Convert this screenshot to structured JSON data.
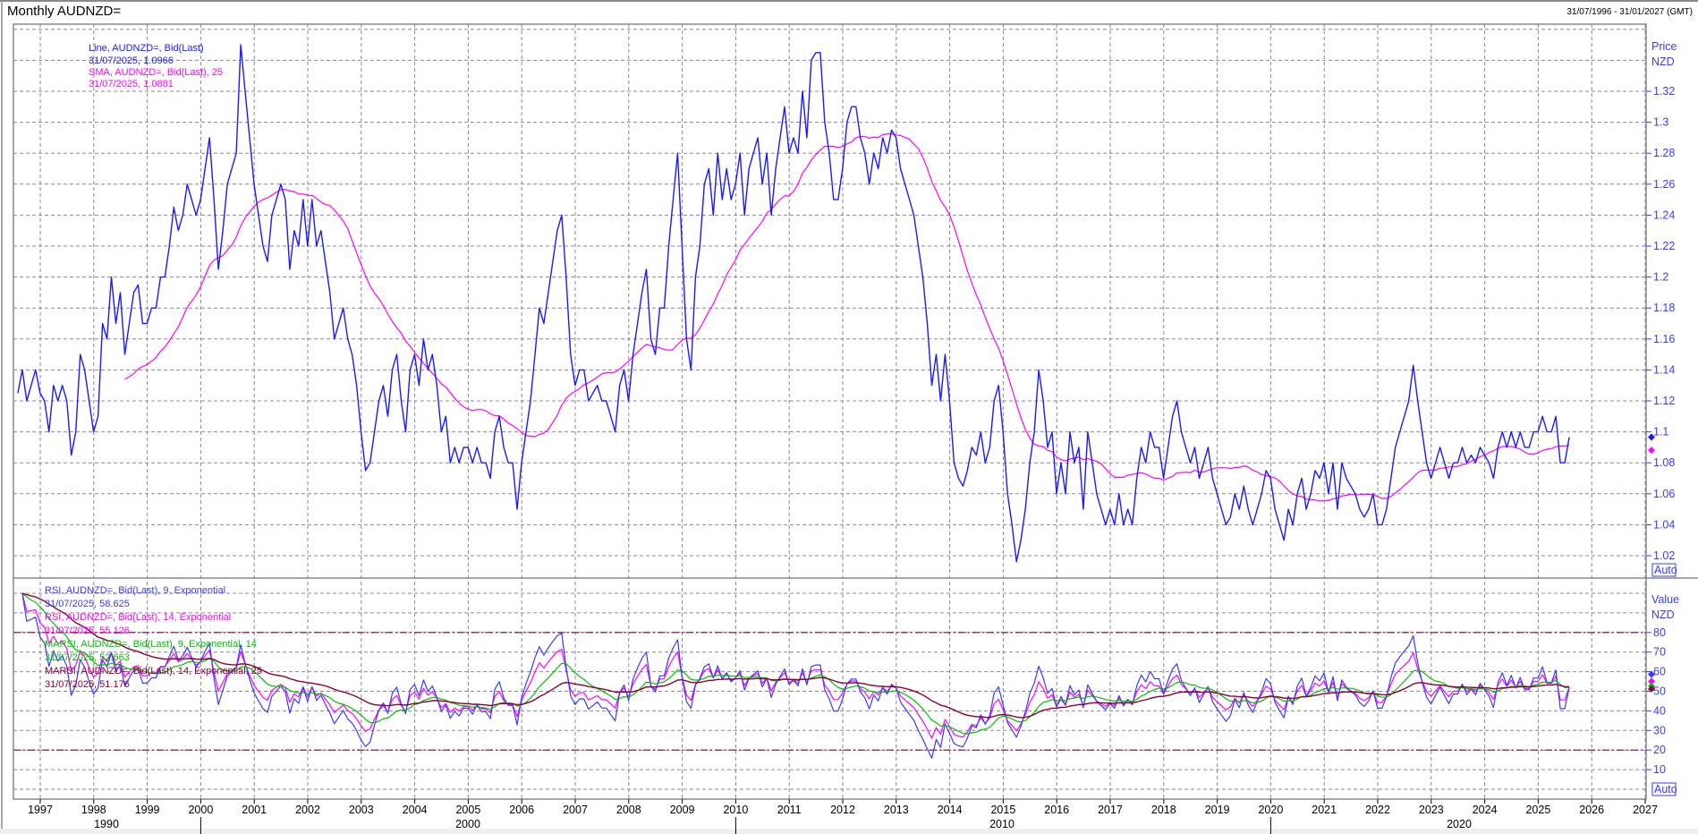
{
  "header": {
    "title": "Monthly AUDNZD=",
    "date_range": "31/07/1996 - 31/01/2027 (GMT)"
  },
  "price_panel": {
    "axis_title": "Price",
    "axis_unit": "NZD",
    "auto_label": "Auto",
    "legend": [
      {
        "label": "Line, AUDNZD=, Bid(Last)",
        "value": "31/07/2025, 1.0966",
        "color": "#1a1aff"
      },
      {
        "label": "SMA, AUDNZD=, Bid(Last),  25",
        "value": "31/07/2025, 1.0881",
        "color": "#ff00ff"
      }
    ],
    "yticks": [
      "1.02",
      "1.04",
      "1.06",
      "1.08",
      "1.1",
      "1.12",
      "1.14",
      "1.16",
      "1.18",
      "1.2",
      "1.22",
      "1.24",
      "1.26",
      "1.28",
      "1.3",
      "1.32"
    ]
  },
  "indicator_panel": {
    "axis_title": "Value",
    "axis_unit": "NZD",
    "auto_label": "Auto",
    "legend": [
      {
        "label": "RSI, AUDNZD=, Bid(Last),  9, Exponential",
        "value": "31/07/2025, 58.625",
        "color": "#3a3aff"
      },
      {
        "label": "RSI, AUDNZD=, Bid(Last),  14, Exponential",
        "value": "31/07/2025, 55.126",
        "color": "#ff00ff"
      },
      {
        "label": "MARSI, AUDNZD=, Bid(Last),  9, Exponential, 14",
        "value": "31/07/2025, 52.663",
        "color": "#00c000"
      },
      {
        "label": "MARSI, AUDNZD=, Bid(Last),  14, Exponential, 25",
        "value": "31/07/2025, 51.176",
        "color": "#8b0033"
      }
    ],
    "yticks": [
      "10",
      "20",
      "30",
      "40",
      "50",
      "60",
      "70",
      "80"
    ],
    "reference_lines": [
      20,
      80
    ],
    "reference_color": "#8b0033"
  },
  "x_axis": {
    "years": [
      "1997",
      "1998",
      "1999",
      "2000",
      "2001",
      "2002",
      "2003",
      "2004",
      "2005",
      "2006",
      "2007",
      "2008",
      "2009",
      "2010",
      "2011",
      "2012",
      "2013",
      "2014",
      "2015",
      "2016",
      "2017",
      "2018",
      "2019",
      "2020",
      "2021",
      "2022",
      "2023",
      "2024",
      "2025",
      "2026",
      "2027"
    ],
    "decades": [
      "1990",
      "2000",
      "2010",
      "2020"
    ]
  },
  "chart_data": {
    "type": "line",
    "frequency": "monthly",
    "start": "1996-07",
    "xlim": [
      "1996-07",
      "2027-01"
    ],
    "price_ylim": [
      1.0,
      1.36
    ],
    "indicator_ylim": [
      0,
      100
    ],
    "grid": true,
    "legend_placement": "top-left",
    "series": [
      {
        "name": "Line, AUDNZD=, Bid(Last)",
        "color": "#1a1aff",
        "values": [
          1.125,
          1.14,
          1.12,
          1.13,
          1.14,
          1.125,
          1.12,
          1.1,
          1.13,
          1.12,
          1.13,
          1.12,
          1.085,
          1.1,
          1.15,
          1.14,
          1.12,
          1.1,
          1.11,
          1.17,
          1.16,
          1.2,
          1.17,
          1.19,
          1.15,
          1.17,
          1.19,
          1.195,
          1.17,
          1.17,
          1.18,
          1.18,
          1.2,
          1.2,
          1.22,
          1.245,
          1.23,
          1.24,
          1.26,
          1.25,
          1.24,
          1.25,
          1.27,
          1.29,
          1.25,
          1.205,
          1.23,
          1.26,
          1.27,
          1.28,
          1.35,
          1.32,
          1.29,
          1.26,
          1.24,
          1.22,
          1.21,
          1.24,
          1.25,
          1.26,
          1.25,
          1.205,
          1.23,
          1.22,
          1.25,
          1.22,
          1.25,
          1.22,
          1.23,
          1.21,
          1.19,
          1.16,
          1.17,
          1.18,
          1.16,
          1.15,
          1.13,
          1.1,
          1.075,
          1.08,
          1.1,
          1.12,
          1.13,
          1.11,
          1.14,
          1.15,
          1.12,
          1.1,
          1.14,
          1.15,
          1.13,
          1.16,
          1.14,
          1.15,
          1.13,
          1.1,
          1.11,
          1.08,
          1.09,
          1.08,
          1.09,
          1.09,
          1.08,
          1.09,
          1.08,
          1.08,
          1.07,
          1.1,
          1.11,
          1.09,
          1.08,
          1.08,
          1.05,
          1.08,
          1.1,
          1.12,
          1.15,
          1.18,
          1.17,
          1.19,
          1.21,
          1.23,
          1.24,
          1.2,
          1.15,
          1.13,
          1.14,
          1.14,
          1.12,
          1.125,
          1.13,
          1.12,
          1.12,
          1.11,
          1.1,
          1.13,
          1.14,
          1.12,
          1.15,
          1.17,
          1.19,
          1.205,
          1.16,
          1.15,
          1.18,
          1.18,
          1.22,
          1.25,
          1.28,
          1.22,
          1.16,
          1.14,
          1.2,
          1.22,
          1.26,
          1.27,
          1.24,
          1.28,
          1.25,
          1.27,
          1.25,
          1.26,
          1.28,
          1.24,
          1.27,
          1.28,
          1.29,
          1.26,
          1.28,
          1.24,
          1.27,
          1.29,
          1.31,
          1.28,
          1.29,
          1.28,
          1.32,
          1.29,
          1.34,
          1.345,
          1.345,
          1.3,
          1.28,
          1.25,
          1.25,
          1.27,
          1.3,
          1.31,
          1.31,
          1.29,
          1.28,
          1.26,
          1.28,
          1.27,
          1.29,
          1.28,
          1.295,
          1.29,
          1.27,
          1.26,
          1.25,
          1.24,
          1.22,
          1.2,
          1.17,
          1.13,
          1.15,
          1.12,
          1.15,
          1.12,
          1.08,
          1.07,
          1.065,
          1.075,
          1.09,
          1.085,
          1.1,
          1.08,
          1.09,
          1.12,
          1.13,
          1.1,
          1.06,
          1.04,
          1.016,
          1.03,
          1.05,
          1.08,
          1.1,
          1.14,
          1.12,
          1.09,
          1.1,
          1.06,
          1.08,
          1.06,
          1.1,
          1.08,
          1.09,
          1.05,
          1.1,
          1.08,
          1.06,
          1.05,
          1.04,
          1.05,
          1.04,
          1.06,
          1.04,
          1.05,
          1.04,
          1.07,
          1.09,
          1.08,
          1.1,
          1.09,
          1.09,
          1.07,
          1.09,
          1.11,
          1.12,
          1.1,
          1.09,
          1.08,
          1.09,
          1.07,
          1.08,
          1.09,
          1.07,
          1.06,
          1.05,
          1.04,
          1.045,
          1.06,
          1.05,
          1.065,
          1.05,
          1.04,
          1.05,
          1.06,
          1.075,
          1.07,
          1.05,
          1.04,
          1.03,
          1.05,
          1.04,
          1.06,
          1.07,
          1.05,
          1.06,
          1.075,
          1.07,
          1.08,
          1.06,
          1.08,
          1.05,
          1.08,
          1.07,
          1.065,
          1.06,
          1.05,
          1.045,
          1.05,
          1.06,
          1.04,
          1.04,
          1.05,
          1.07,
          1.09,
          1.1,
          1.11,
          1.12,
          1.143,
          1.12,
          1.1,
          1.08,
          1.07,
          1.08,
          1.09,
          1.08,
          1.07,
          1.08,
          1.08,
          1.09,
          1.08,
          1.085,
          1.08,
          1.09,
          1.085,
          1.08,
          1.07,
          1.09,
          1.1,
          1.09,
          1.1,
          1.09,
          1.1,
          1.09,
          1.09,
          1.1,
          1.1,
          1.11,
          1.1,
          1.1,
          1.11,
          1.08,
          1.08,
          1.0966
        ]
      },
      {
        "name": "SMA, AUDNZD=, Bid(Last),  25",
        "color": "#ff00ff",
        "period": 25
      },
      {
        "name": "RSI, AUDNZD=, Bid(Last),  9, Exponential",
        "color": "#3a3aff",
        "period": 9
      },
      {
        "name": "RSI, AUDNZD=, Bid(Last),  14, Exponential",
        "color": "#ff00ff",
        "period": 14
      },
      {
        "name": "MARSI, AUDNZD=, Bid(Last),  9, Exponential, 14",
        "color": "#00c000",
        "period": 9,
        "ma_period": 14
      },
      {
        "name": "MARSI, AUDNZD=, Bid(Last),  14, Exponential, 25",
        "color": "#8b0033",
        "period": 14,
        "ma_period": 25
      }
    ]
  }
}
